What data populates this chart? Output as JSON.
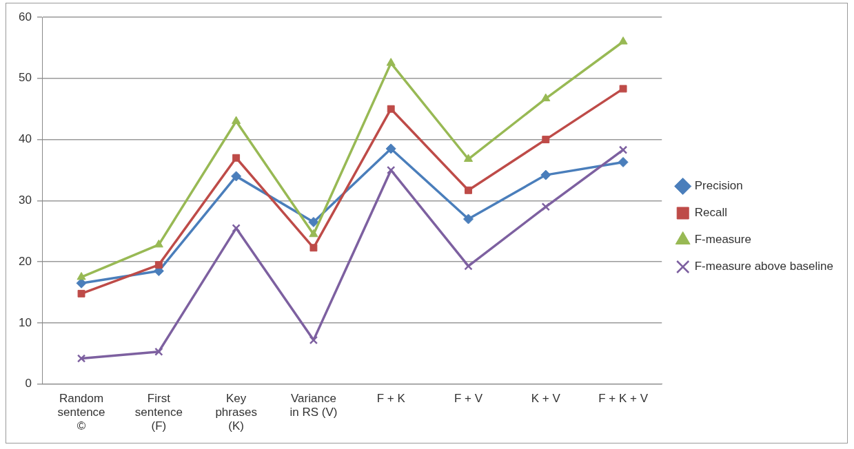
{
  "chart_data": {
    "type": "line",
    "categories": [
      "Random\nsentence\n©",
      "First\nsentence\n(F)",
      "Key\nphrases\n(K)",
      "Variance\nin RS (V)",
      "F + K",
      "F + V",
      "K + V",
      "F + K + V"
    ],
    "series": [
      {
        "name": "Precision",
        "color": "#4a7ebb",
        "marker": "diamond",
        "values": [
          16.5,
          18.5,
          34,
          26.5,
          38.5,
          27,
          34.2,
          36.3
        ]
      },
      {
        "name": "Recall",
        "color": "#be4b48",
        "marker": "square",
        "values": [
          14.8,
          19.5,
          37,
          22.3,
          45,
          31.7,
          40,
          48.3
        ]
      },
      {
        "name": "F-measure",
        "color": "#98b954",
        "marker": "triangle",
        "values": [
          17.5,
          22.8,
          43,
          24.5,
          52.5,
          36.8,
          46.7,
          56
        ]
      },
      {
        "name": "F-measure above baseline",
        "color": "#7d60a0",
        "marker": "cross",
        "values": [
          4.2,
          5.3,
          25.5,
          7.2,
          35,
          19.3,
          29,
          38.3
        ]
      }
    ],
    "ylim": [
      0,
      60
    ],
    "yticks": [
      0,
      10,
      20,
      30,
      40,
      50,
      60
    ],
    "grid": "y",
    "legend": "right",
    "line_style": "solid"
  }
}
